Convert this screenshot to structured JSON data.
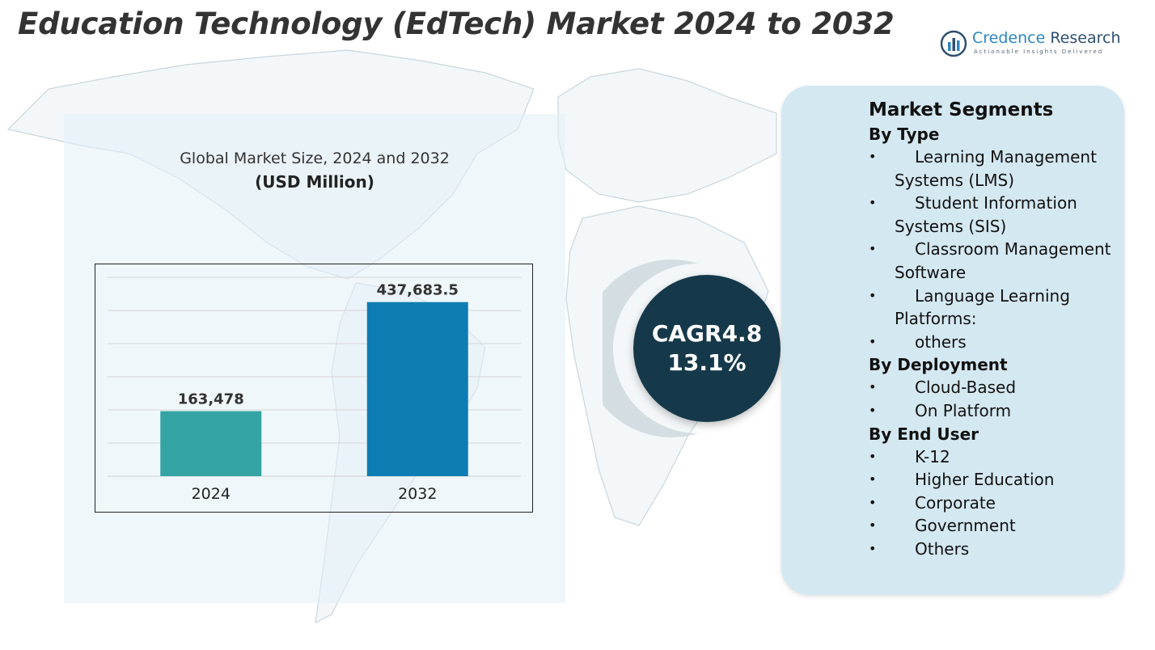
{
  "title": "Education Technology (EdTech) Market 2024 to 2032",
  "logo": {
    "brand": "Credence",
    "name": "Research",
    "tagline": "Actionable Insights Delivered",
    "icon": "bar-chart-circle-icon"
  },
  "chart_panel": {
    "caption": "Global Market Size, 2024 and 2032",
    "unit": "(USD Million)"
  },
  "chart_data": {
    "type": "bar",
    "categories": [
      "2024",
      "2032"
    ],
    "values": [
      163478,
      437683.5
    ],
    "data_labels": [
      "163,478",
      "437,683.5"
    ],
    "colors": [
      "#34a3a3",
      "#0e7db3"
    ],
    "ylim": [
      0,
      500000
    ],
    "grid": true,
    "title": "",
    "xlabel": "",
    "ylabel": ""
  },
  "cagr": {
    "line1": "CAGR4.8",
    "line2": "13.1%"
  },
  "segments": {
    "heading": "Market Segments",
    "bullet": "•",
    "groups": [
      {
        "label": "By Type",
        "items": [
          "Learning Management Systems (LMS)",
          "Student Information Systems (SIS)",
          "Classroom Management Software",
          "Language Learning Platforms:",
          "others"
        ]
      },
      {
        "label": "By Deployment",
        "items": [
          "Cloud-Based",
          "On Platform"
        ]
      },
      {
        "label": "By End User",
        "items": [
          "K-12",
          "Higher Education",
          "Corporate",
          "Government",
          "Others"
        ]
      }
    ]
  },
  "colors": {
    "title": "#333333",
    "cagr_circle": "#15394a",
    "segment_panel": "#cde4f0"
  }
}
